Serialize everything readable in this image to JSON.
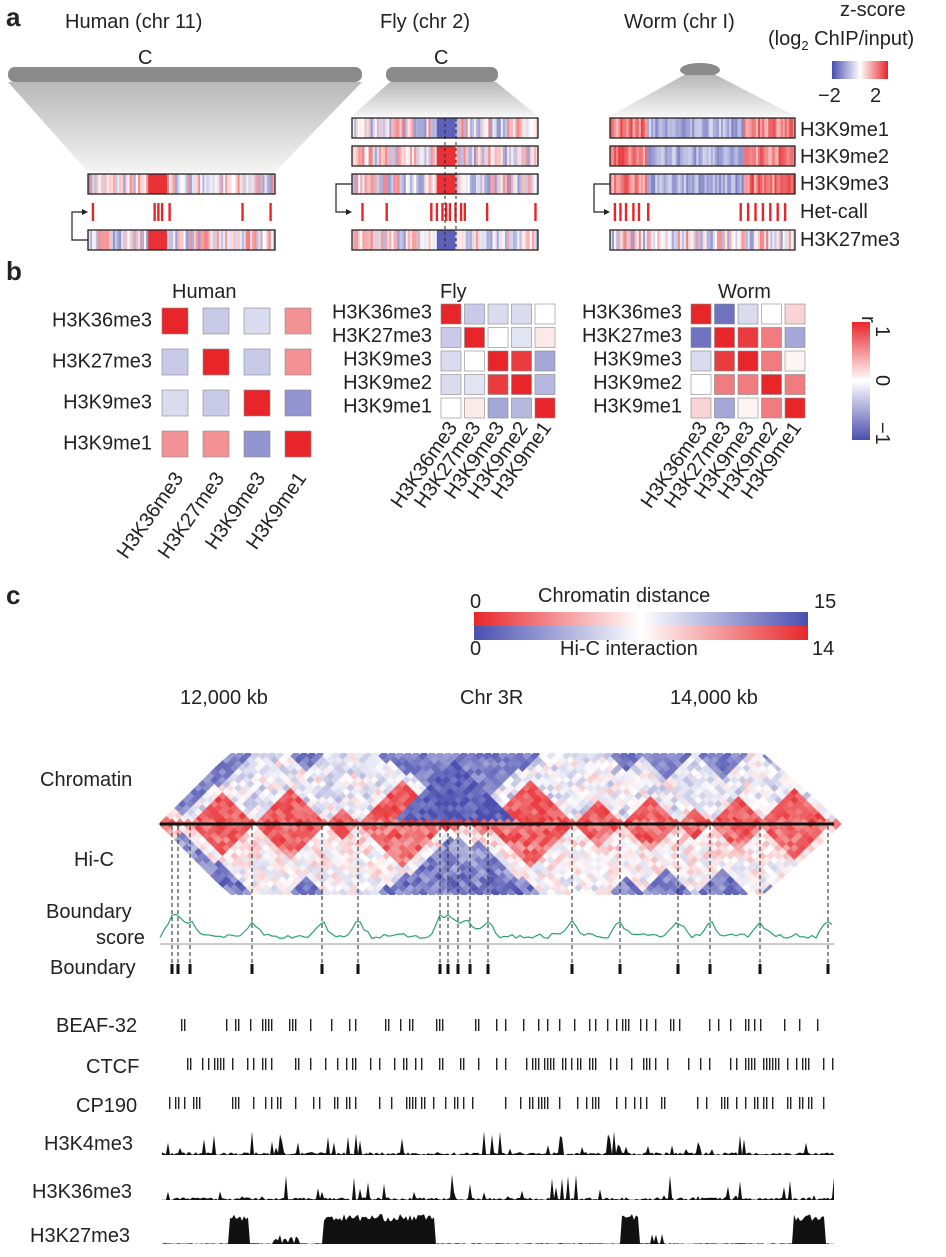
{
  "panels": {
    "a": "a",
    "b": "b",
    "c": "c"
  },
  "panel_a": {
    "species": [
      "Human (chr 11)",
      "Fly (chr 2)",
      "Worm (chr I)"
    ],
    "centromere": "C",
    "scale_title_1": "z-score",
    "scale_title_2": "(log",
    "scale_title_sub": "2",
    "scale_title_3": " ChIP/input)",
    "scale_min": "−2",
    "scale_max": "2",
    "tracks": [
      "H3K9me1",
      "H3K9me2",
      "H3K9me3",
      "Het-call",
      "H3K27me3"
    ]
  },
  "panel_b": {
    "species": [
      "Human",
      "Fly",
      "Worm"
    ],
    "human_marks": [
      "H3K36me3",
      "H3K27me3",
      "H3K9me3",
      "H3K9me1"
    ],
    "fly_marks": [
      "H3K36me3",
      "H3K27me3",
      "H3K9me3",
      "H3K9me2",
      "H3K9me1"
    ],
    "worm_marks": [
      "H3K36me3",
      "H3K27me3",
      "H3K9me3",
      "H3K9me2",
      "H3K9me1"
    ],
    "human_r": [
      [
        1,
        -0.3,
        -0.2,
        0.5
      ],
      [
        -0.3,
        1,
        -0.3,
        0.5
      ],
      [
        -0.2,
        -0.3,
        1,
        -0.6
      ],
      [
        0.5,
        0.5,
        -0.6,
        1
      ]
    ],
    "fly_r": [
      [
        1,
        -0.3,
        -0.2,
        -0.2,
        0
      ],
      [
        -0.3,
        1,
        0,
        -0.15,
        0.1
      ],
      [
        -0.2,
        0,
        1,
        0.9,
        -0.5
      ],
      [
        -0.2,
        -0.15,
        0.9,
        1,
        -0.4
      ],
      [
        0,
        0.1,
        -0.5,
        -0.4,
        1
      ]
    ],
    "worm_r": [
      [
        1,
        -0.8,
        -0.2,
        0,
        0.2
      ],
      [
        -0.8,
        1,
        0.9,
        0.6,
        -0.5
      ],
      [
        -0.2,
        0.9,
        1,
        0.6,
        0.05
      ],
      [
        0,
        0.6,
        0.6,
        1,
        0.6
      ],
      [
        0.2,
        -0.5,
        0.05,
        0.6,
        1
      ]
    ],
    "scale_label": "r",
    "scale_max": "1",
    "scale_mid": "0",
    "scale_min": "−1"
  },
  "panel_c": {
    "dist_label": "Chromatin distance",
    "dist_min": "0",
    "dist_max": "15",
    "hic_label": "Hi-C interaction",
    "hic_min": "0",
    "hic_max": "14",
    "coord_left": "12,000 kb",
    "chrom": "Chr 3R",
    "coord_right": "14,000 kb",
    "track_labels": [
      "Chromatin",
      "Hi-C",
      "Boundary",
      "score",
      "Boundary",
      "BEAF-32",
      "CTCF",
      "CP190",
      "H3K4me3",
      "H3K36me3",
      "H3K27me3"
    ]
  },
  "colors": {
    "red": "#e8262a",
    "blue": "#4a4fb0",
    "green": "#2aa36b"
  }
}
